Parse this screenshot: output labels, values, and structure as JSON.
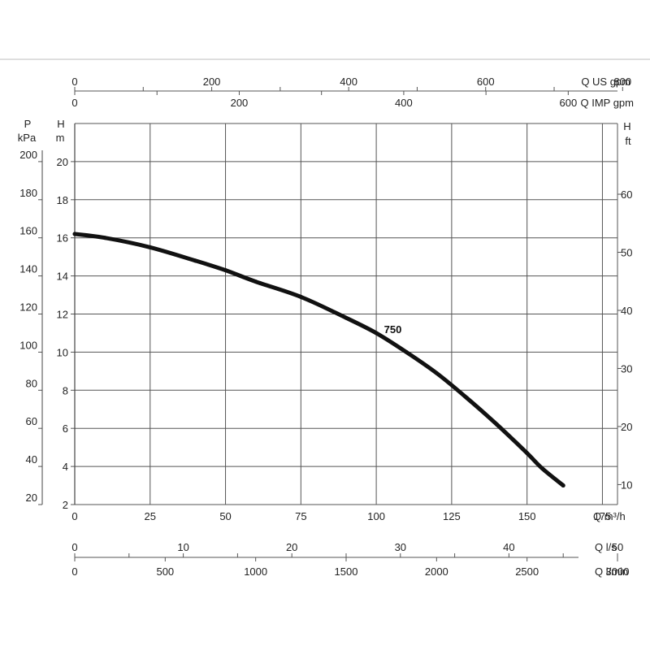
{
  "chart_data": {
    "type": "line",
    "series": [
      {
        "name": "750",
        "x": [
          0,
          10,
          25,
          40,
          50,
          60,
          75,
          90,
          100,
          110,
          120,
          130,
          140,
          150,
          155,
          162
        ],
        "y": [
          16.2,
          16.0,
          15.5,
          14.8,
          14.3,
          13.7,
          12.9,
          11.8,
          11.0,
          10.0,
          8.9,
          7.6,
          6.2,
          4.7,
          3.9,
          3.0
        ]
      }
    ],
    "axes": {
      "flow_m3h": {
        "label": "Q m³/h",
        "range": [
          0,
          180
        ],
        "ticks": [
          "0",
          "25",
          "50",
          "75",
          "100",
          "125",
          "150",
          "175"
        ]
      },
      "head_m": {
        "label_top": "H",
        "label_unit": "m",
        "range": [
          2,
          22
        ],
        "ticks": [
          "2",
          "4",
          "6",
          "8",
          "10",
          "12",
          "14",
          "16",
          "18",
          "20"
        ]
      },
      "pressure_kpa": {
        "label_top": "P",
        "label_unit": "kPa",
        "ticks": [
          "20",
          "40",
          "60",
          "80",
          "100",
          "120",
          "140",
          "160",
          "180",
          "200"
        ]
      },
      "head_ft": {
        "label_top": "H",
        "label_unit": "ft",
        "ticks": [
          "10",
          "20",
          "30",
          "40",
          "50",
          "60"
        ]
      },
      "q_us_gpm": {
        "label": "Q US gpm",
        "ticks": [
          "0",
          "200",
          "400",
          "600",
          "800"
        ]
      },
      "q_imp_gpm": {
        "label": "Q IMP gpm",
        "ticks": [
          "0",
          "200",
          "400",
          "600"
        ]
      },
      "q_ls": {
        "label": "Q l/s",
        "ticks": [
          "0",
          "10",
          "20",
          "30",
          "40",
          "50"
        ]
      },
      "q_lmin": {
        "label": "Q l/min",
        "ticks": [
          "0",
          "500",
          "1000",
          "1500",
          "2000",
          "2500",
          "3000"
        ]
      }
    },
    "grid": true,
    "curve_label": "750"
  }
}
